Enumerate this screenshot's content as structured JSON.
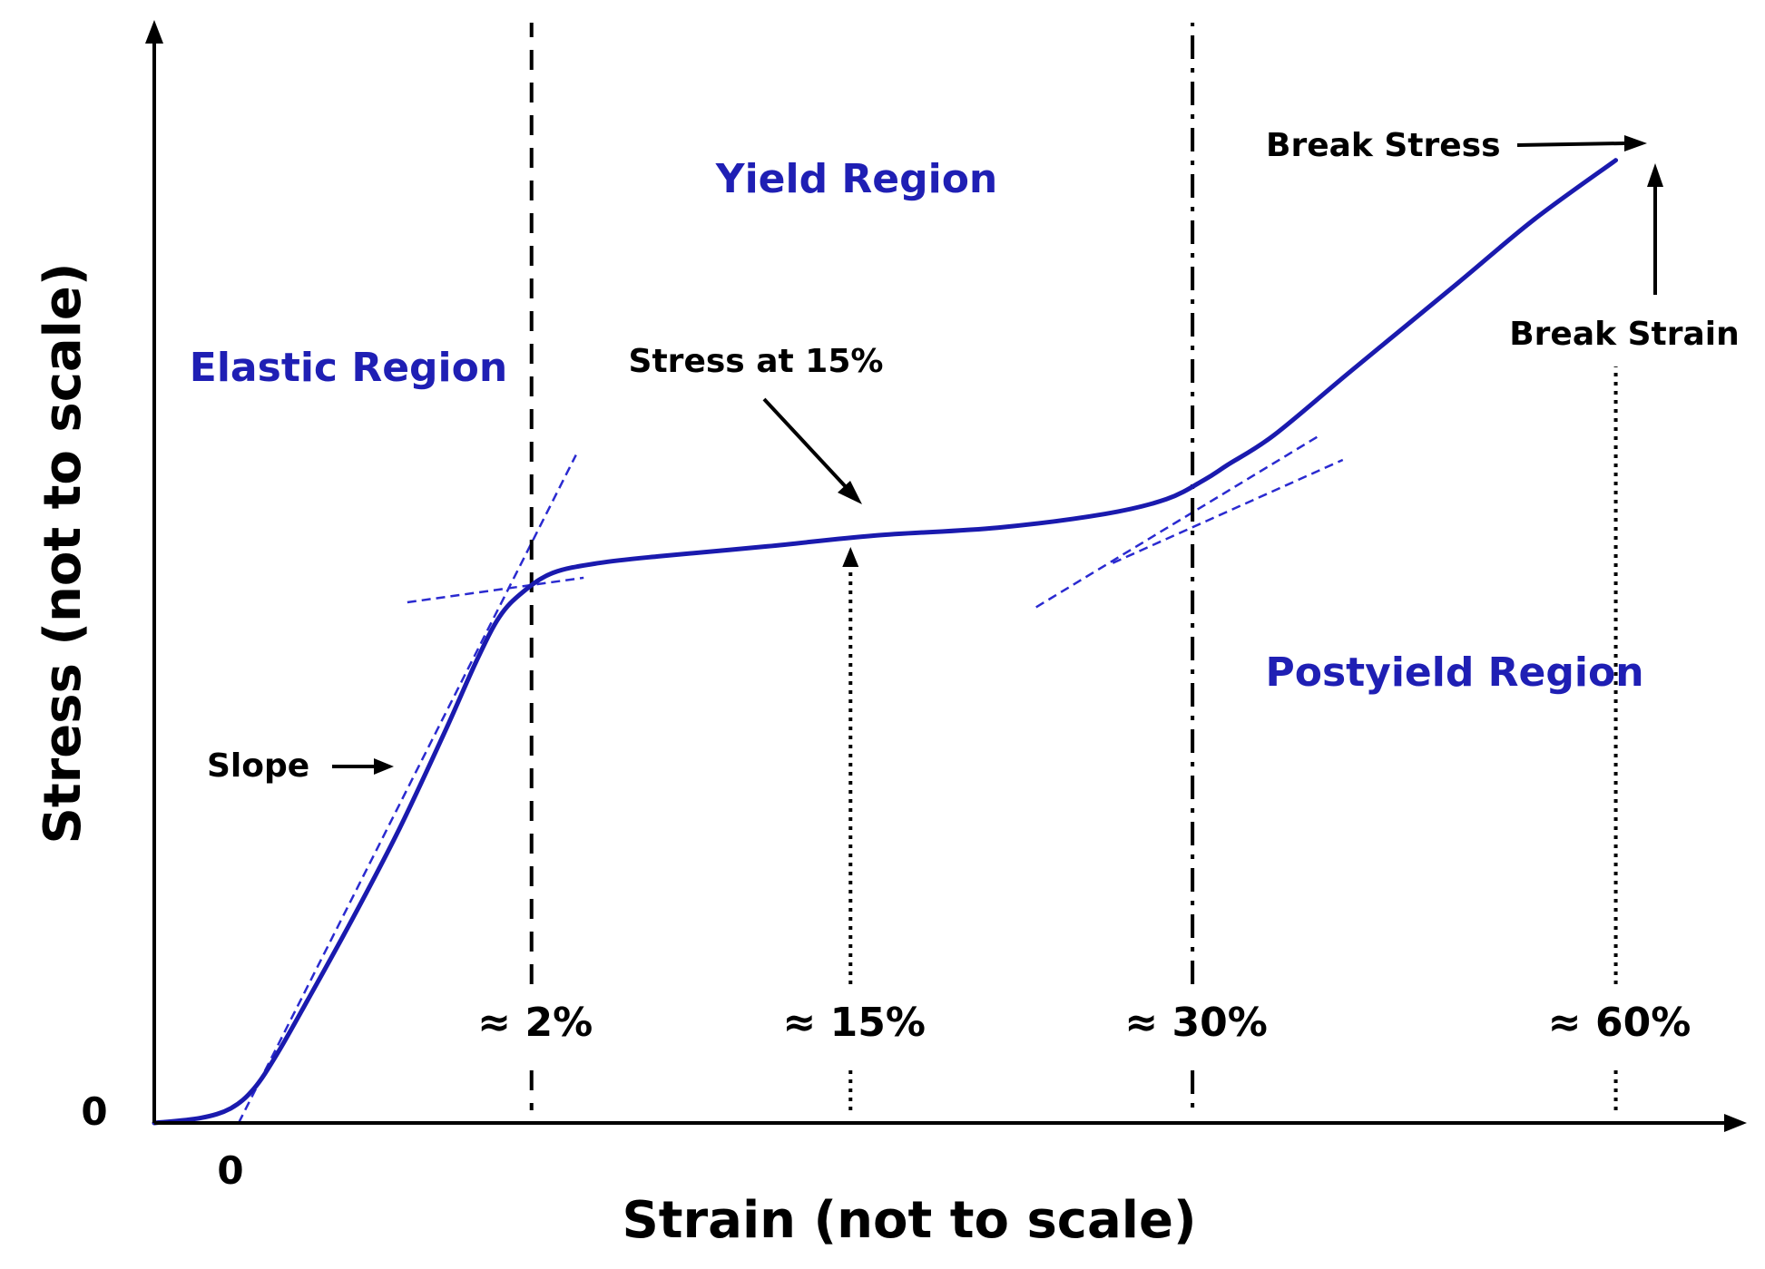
{
  "chart_data": {
    "type": "line",
    "title": "",
    "xlabel": "Strain (not to scale)",
    "ylabel": "Stress (not to scale)",
    "origin_x_label": "0",
    "origin_y_label": "0",
    "xlim": [
      0,
      100
    ],
    "ylim": [
      0,
      100
    ],
    "grid": false,
    "colors": {
      "curve": "#1a1aae",
      "tangent": "#2a2ad0",
      "region_text": "#1f1fb4",
      "annotation": "#000000"
    },
    "series": [
      {
        "name": "stress-strain curve",
        "x": [
          0,
          3,
          5,
          6.5,
          8,
          10,
          13,
          16,
          19,
          21,
          22.5,
          24,
          26,
          29,
          33,
          40,
          47,
          55,
          62,
          66,
          68.5,
          70,
          73,
          78,
          85,
          90,
          95.3
        ],
        "y": [
          0,
          0.5,
          1.5,
          3.5,
          7,
          12.5,
          21,
          30,
          40,
          47,
          51.5,
          54,
          56,
          57,
          57.7,
          58.7,
          59.8,
          60.6,
          62,
          63.5,
          65.5,
          67,
          70,
          76.5,
          85.5,
          92,
          98
        ]
      }
    ],
    "tangent_lines": [
      {
        "name": "elastic-slope-tangent",
        "x1": 5.5,
        "y1": 0,
        "x2": 27.5,
        "y2": 68
      },
      {
        "name": "yield-tangent",
        "x1": 16.5,
        "y1": 53,
        "x2": 28,
        "y2": 55.5
      },
      {
        "name": "postyield-start-tangent",
        "x1": 62.5,
        "y1": 57,
        "x2": 77.5,
        "y2": 67.5
      },
      {
        "name": "postyield-end-tangent",
        "x1": 57.5,
        "y1": 52.5,
        "x2": 76,
        "y2": 70
      }
    ],
    "vertical_markers": [
      {
        "name": "2pct-marker",
        "x": 24.6,
        "label": "≈ 2%",
        "style": "dashed",
        "y_top": 112
      },
      {
        "name": "15pct-marker",
        "x": 45.4,
        "label": "≈ 15%",
        "style": "dotted",
        "y_top": 59
      },
      {
        "name": "30pct-marker",
        "x": 67.7,
        "label": "≈ 30%",
        "style": "dash-dot",
        "y_top": 112
      },
      {
        "name": "60pct-marker",
        "x": 95.3,
        "label": "≈ 60%",
        "style": "dotted",
        "y_top": 77
      }
    ],
    "regions": [
      {
        "name": "elastic-region",
        "label": "Elastic Region"
      },
      {
        "name": "yield-region",
        "label": "Yield  Region"
      },
      {
        "name": "postyield-region",
        "label": "Postyield  Region"
      }
    ],
    "annotations": [
      {
        "name": "slope",
        "label": "Slope"
      },
      {
        "name": "stress-at-15",
        "label": "Stress at 15%"
      },
      {
        "name": "break-stress",
        "label": "Break Stress"
      },
      {
        "name": "break-strain",
        "label": "Break Strain"
      }
    ]
  }
}
